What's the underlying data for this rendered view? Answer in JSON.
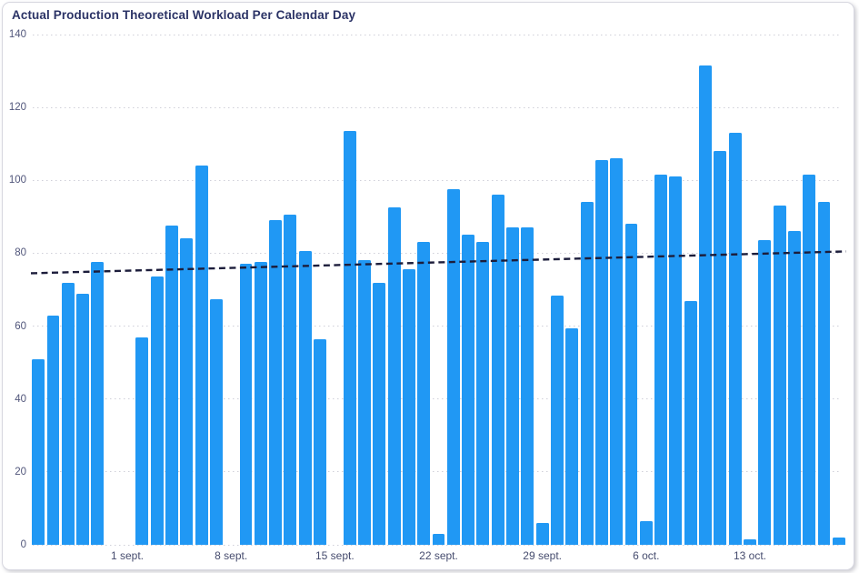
{
  "chart_data": {
    "type": "bar",
    "title": "Actual Production Theoretical Workload Per Calendar Day",
    "xlabel": "",
    "ylabel": "",
    "ylim": [
      0,
      140
    ],
    "yticks": [
      0,
      20,
      40,
      60,
      80,
      100,
      120,
      140
    ],
    "grid": "horizontal-dotted",
    "legend_position": "none",
    "bar_color": "#2098F4",
    "grid_color": "#CFCFD8",
    "axis_label_color": "#4E5377",
    "title_color": "#2B3366",
    "slots_total": 55,
    "values": [
      51,
      63,
      72,
      69,
      77.5,
      null,
      null,
      57,
      73.5,
      87.5,
      84,
      104,
      67.5,
      null,
      77,
      77.5,
      89,
      90.5,
      80.5,
      56.5,
      null,
      113.5,
      78,
      72,
      92.5,
      75.5,
      83,
      3,
      97.5,
      85,
      83,
      96,
      87,
      87,
      6,
      68.5,
      59.5,
      94,
      105.5,
      106,
      88,
      6.5,
      101.5,
      101,
      67,
      131.5,
      108,
      113,
      1.5,
      83.5,
      93,
      86,
      101.5,
      94,
      2
    ],
    "x_ticks": [
      {
        "slot": 6,
        "label": "1 sept."
      },
      {
        "slot": 13,
        "label": "8 sept."
      },
      {
        "slot": 20,
        "label": "15 sept."
      },
      {
        "slot": 27,
        "label": "22 sept."
      },
      {
        "slot": 34,
        "label": "29 sept."
      },
      {
        "slot": 41,
        "label": "6 oct."
      },
      {
        "slot": 48,
        "label": "13 oct."
      }
    ],
    "trendline": {
      "style": "dashed",
      "color": "#1C1D3B",
      "start_value": 74.5,
      "end_value": 80.5
    }
  }
}
